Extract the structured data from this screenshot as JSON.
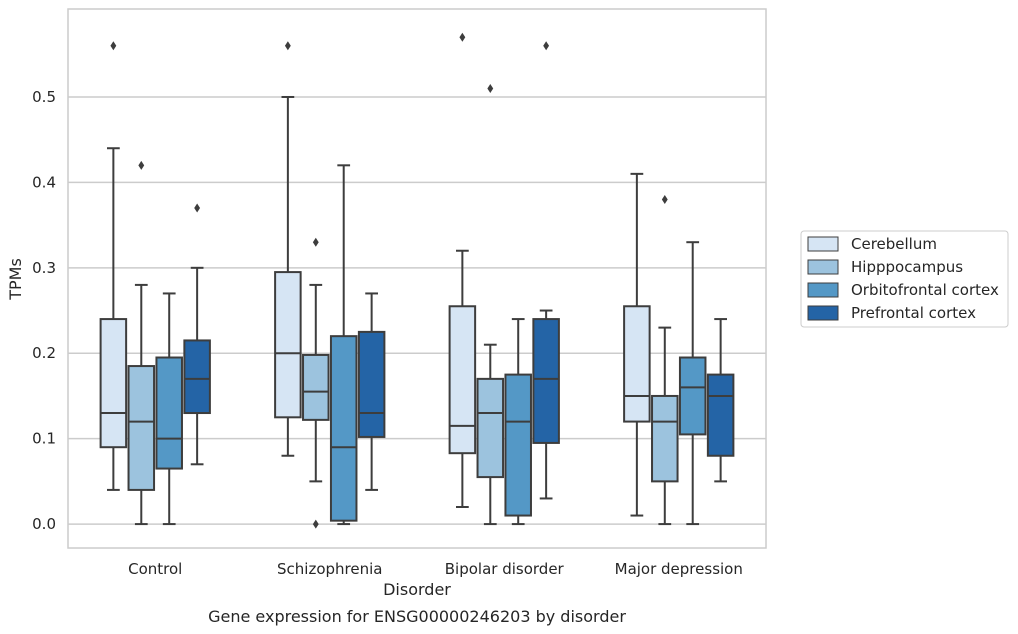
{
  "caption": "Gene expression for ENSG00000246203 by disorder",
  "chart_data": {
    "type": "box",
    "xlabel": "Disorder",
    "ylabel": "TPMs",
    "ylim": [
      -0.028,
      0.603
    ],
    "yticks": [
      0.0,
      0.1,
      0.2,
      0.3,
      0.4,
      0.5
    ],
    "ytick_labels": [
      "0.0",
      "0.1",
      "0.2",
      "0.3",
      "0.4",
      "0.5"
    ],
    "grid": true,
    "legend_position": "outside-right",
    "categories": [
      "Control",
      "Schizophrenia",
      "Bipolar disorder",
      "Major depression"
    ],
    "series": [
      {
        "name": "Cerebellum",
        "color": "#d6e5f4",
        "boxes": [
          {
            "whislo": 0.04,
            "q1": 0.09,
            "med": 0.13,
            "q3": 0.24,
            "whishi": 0.44,
            "fliers": [
              0.56
            ]
          },
          {
            "whislo": 0.08,
            "q1": 0.125,
            "med": 0.2,
            "q3": 0.295,
            "whishi": 0.5,
            "fliers": [
              0.56
            ]
          },
          {
            "whislo": 0.02,
            "q1": 0.083,
            "med": 0.115,
            "q3": 0.255,
            "whishi": 0.32,
            "fliers": [
              0.57
            ]
          },
          {
            "whislo": 0.01,
            "q1": 0.12,
            "med": 0.15,
            "q3": 0.255,
            "whishi": 0.41,
            "fliers": []
          }
        ]
      },
      {
        "name": "Hipppocampus",
        "color": "#9cc3de",
        "boxes": [
          {
            "whislo": 0.0,
            "q1": 0.04,
            "med": 0.12,
            "q3": 0.185,
            "whishi": 0.28,
            "fliers": [
              0.42
            ]
          },
          {
            "whislo": 0.05,
            "q1": 0.122,
            "med": 0.155,
            "q3": 0.198,
            "whishi": 0.28,
            "fliers": [
              0.33,
              0.0
            ]
          },
          {
            "whislo": 0.0,
            "q1": 0.055,
            "med": 0.13,
            "q3": 0.17,
            "whishi": 0.21,
            "fliers": [
              0.51
            ]
          },
          {
            "whislo": 0.0,
            "q1": 0.05,
            "med": 0.12,
            "q3": 0.15,
            "whishi": 0.23,
            "fliers": [
              0.38
            ]
          }
        ]
      },
      {
        "name": "Orbitofrontal cortex",
        "color": "#5498c6",
        "boxes": [
          {
            "whislo": 0.0,
            "q1": 0.065,
            "med": 0.1,
            "q3": 0.195,
            "whishi": 0.27,
            "fliers": []
          },
          {
            "whislo": 0.0,
            "q1": 0.004,
            "med": 0.09,
            "q3": 0.22,
            "whishi": 0.42,
            "fliers": []
          },
          {
            "whislo": 0.0,
            "q1": 0.01,
            "med": 0.12,
            "q3": 0.175,
            "whishi": 0.24,
            "fliers": []
          },
          {
            "whislo": 0.0,
            "q1": 0.105,
            "med": 0.16,
            "q3": 0.195,
            "whishi": 0.33,
            "fliers": []
          }
        ]
      },
      {
        "name": "Prefrontal cortex",
        "color": "#2464a6",
        "boxes": [
          {
            "whislo": 0.07,
            "q1": 0.13,
            "med": 0.17,
            "q3": 0.215,
            "whishi": 0.3,
            "fliers": [
              0.37
            ]
          },
          {
            "whislo": 0.04,
            "q1": 0.102,
            "med": 0.13,
            "q3": 0.225,
            "whishi": 0.27,
            "fliers": []
          },
          {
            "whislo": 0.03,
            "q1": 0.095,
            "med": 0.17,
            "q3": 0.24,
            "whishi": 0.25,
            "fliers": [
              0.56
            ]
          },
          {
            "whislo": 0.05,
            "q1": 0.08,
            "med": 0.15,
            "q3": 0.175,
            "whishi": 0.24,
            "fliers": []
          }
        ]
      }
    ]
  }
}
